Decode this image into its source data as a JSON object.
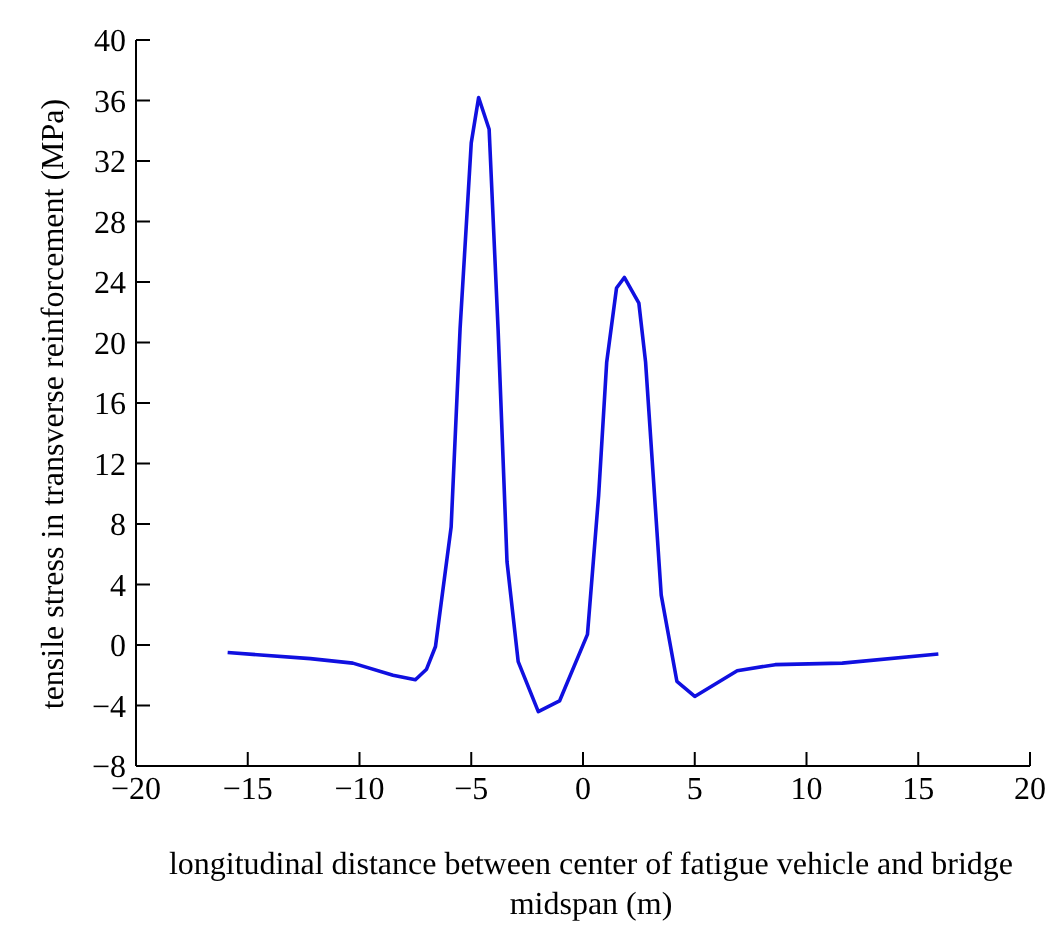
{
  "chart_data": {
    "type": "line",
    "xlabel": "longitudinal distance between center of fatigue vehicle and bridge midspan (m)",
    "ylabel": "tensile stress in transverse reinforcement (MPa)",
    "x": [
      -15.9,
      -12.2,
      -10.3,
      -8.5,
      -7.5,
      -7.0,
      -6.6,
      -5.9,
      -5.5,
      -5.0,
      -4.67,
      -4.2,
      -3.8,
      -3.4,
      -2.9,
      -2.0,
      -1.05,
      0.2,
      0.7,
      1.06,
      1.5,
      1.85,
      2.5,
      2.8,
      3.1,
      3.5,
      4.2,
      5.0,
      6.9,
      8.6,
      11.6,
      15.9
    ],
    "series": [
      {
        "color": "#1010e0",
        "values": [
          -0.5,
          -0.9,
          -1.2,
          -2.0,
          -2.3,
          -1.6,
          -0.1,
          7.8,
          20.9,
          33.2,
          36.2,
          34.1,
          20.9,
          5.5,
          -1.1,
          -4.4,
          -3.7,
          0.7,
          9.9,
          18.7,
          23.6,
          24.3,
          22.6,
          18.7,
          12.1,
          3.3,
          -2.4,
          -3.4,
          -1.7,
          -1.3,
          -1.2,
          -0.6
        ]
      }
    ],
    "xlim": [
      -20,
      20
    ],
    "xticks": [
      -20,
      -15,
      -10,
      -5,
      0,
      5,
      10,
      15,
      20
    ],
    "ylim": [
      -8,
      40
    ],
    "yticks": [
      -8,
      -4,
      0,
      4,
      8,
      12,
      16,
      20,
      24,
      28,
      32,
      36,
      40
    ],
    "grid": false,
    "legend": false,
    "marker": "none",
    "line_style": "solid"
  }
}
